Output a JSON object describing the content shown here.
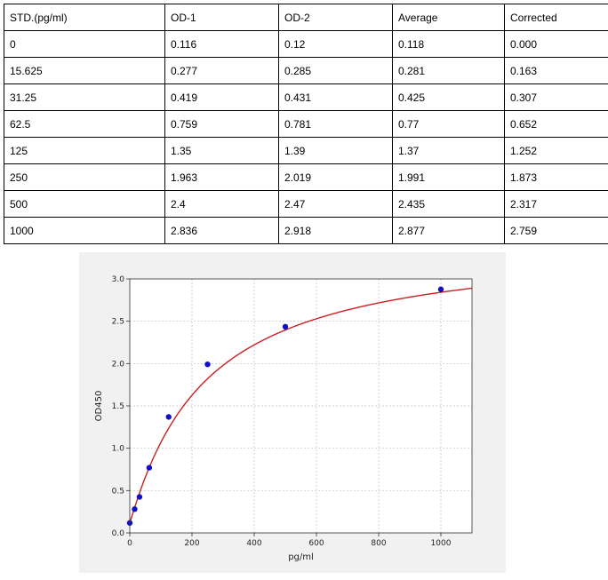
{
  "table": {
    "headers": [
      "STD.(pg/ml)",
      "OD-1",
      "OD-2",
      "Average",
      "Corrected"
    ],
    "rows": [
      [
        "0",
        "0.116",
        "0.12",
        "0.118",
        "0.000"
      ],
      [
        "15.625",
        "0.277",
        "0.285",
        "0.281",
        "0.163"
      ],
      [
        "31.25",
        "0.419",
        "0.431",
        "0.425",
        "0.307"
      ],
      [
        "62.5",
        "0.759",
        "0.781",
        "0.77",
        "0.652"
      ],
      [
        "125",
        "1.35",
        "1.39",
        "1.37",
        "1.252"
      ],
      [
        "250",
        "1.963",
        "2.019",
        "1.991",
        "1.873"
      ],
      [
        "500",
        "2.4",
        "2.47",
        "2.435",
        "2.317"
      ],
      [
        "1000",
        "2.836",
        "2.918",
        "2.877",
        "2.759"
      ]
    ]
  },
  "chart_data": {
    "type": "scatter",
    "title": "",
    "xlabel": "pg/ml",
    "ylabel": "OD450",
    "xlim": [
      0,
      1100
    ],
    "ylim": [
      0,
      3.0
    ],
    "xticks": [
      0,
      200,
      400,
      600,
      800,
      1000
    ],
    "yticks": [
      0,
      0.5,
      1.0,
      1.5,
      2.0,
      2.5,
      3.0
    ],
    "xtick_labels": [
      "0",
      "200",
      "400",
      "600",
      "800",
      "1000"
    ],
    "ytick_labels": [
      "0.0",
      "0.5",
      "1.0",
      "1.5",
      "2.0",
      "2.5",
      "3.0"
    ],
    "grid": true,
    "points": {
      "x": [
        0,
        15.625,
        31.25,
        62.5,
        125,
        250,
        500,
        1000
      ],
      "y": [
        0.118,
        0.281,
        0.425,
        0.77,
        1.37,
        1.991,
        2.435,
        2.877
      ],
      "color": "#1010c8"
    },
    "fit_curve": {
      "model": "4PL",
      "a": 0.12,
      "b": 1.05,
      "c": 240,
      "d": 3.45,
      "color": "#cc2020"
    }
  }
}
